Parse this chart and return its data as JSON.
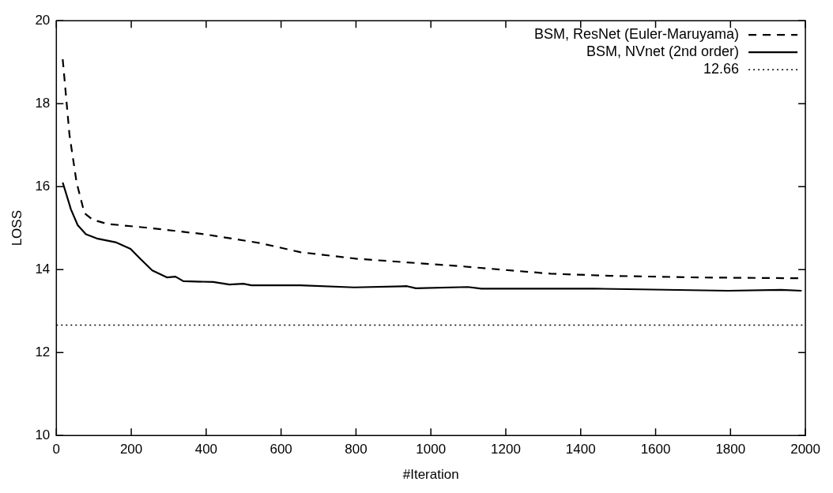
{
  "chart_data": {
    "type": "line",
    "xlabel": "#Iteration",
    "ylabel": "LOSS",
    "xlim": [
      0,
      2000
    ],
    "xticks": [
      0,
      200,
      400,
      600,
      800,
      1000,
      1200,
      1400,
      1600,
      1800,
      2000
    ],
    "ylim": [
      10,
      20
    ],
    "yticks": [
      10,
      12,
      14,
      16,
      18,
      20
    ],
    "grid": false,
    "legend": "top right",
    "marker": "none",
    "series": [
      {
        "name": "BSM, ResNet (Euler-Maruyama)",
        "color": "#000000",
        "line_style": "dashed",
        "x": [
          17,
          35,
          54,
          75,
          97,
          137,
          252,
          397,
          543,
          651,
          803,
          1081,
          1320,
          1477,
          1713,
          1991
        ],
        "values": [
          19.07,
          17.25,
          16.1,
          15.36,
          15.2,
          15.1,
          15.0,
          14.85,
          14.64,
          14.42,
          14.26,
          14.08,
          13.9,
          13.85,
          13.81,
          13.79
        ]
      },
      {
        "name": "BSM, NVnet (2nd order)",
        "color": "#000000",
        "line_style": "solid",
        "x": [
          17,
          39,
          57,
          79,
          108,
          158,
          198,
          224,
          256,
          296,
          318,
          339,
          419,
          462,
          499,
          521,
          651,
          795,
          936,
          960,
          1099,
          1135,
          1438,
          1794,
          1935,
          1990
        ],
        "values": [
          16.1,
          15.45,
          15.07,
          14.85,
          14.75,
          14.66,
          14.5,
          14.26,
          13.98,
          13.81,
          13.83,
          13.72,
          13.7,
          13.64,
          13.66,
          13.62,
          13.62,
          13.57,
          13.6,
          13.55,
          13.58,
          13.54,
          13.54,
          13.49,
          13.51,
          13.49
        ]
      }
    ],
    "ref_lines": [
      {
        "axis": "y",
        "value": 12.66,
        "label": "12.66",
        "color": "#000000",
        "line_style": "dotted"
      }
    ]
  }
}
